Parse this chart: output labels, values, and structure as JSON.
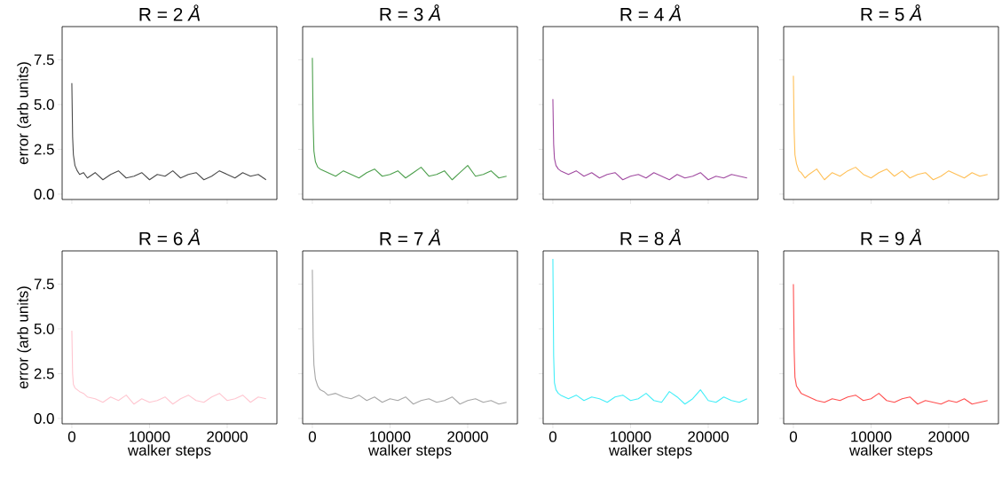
{
  "chart_data": [
    {
      "type": "line",
      "title": "R = 2 *Å*",
      "ylabel": "error (arb units)",
      "tick_labels": "y",
      "xlim": [
        -1250,
        26400
      ],
      "ylim": [
        -0.3,
        9.35
      ],
      "xticks": [
        0,
        10000,
        20000
      ],
      "yticks": [
        {
          "value": 0,
          "label": "0.0"
        },
        {
          "value": 2.5,
          "label": "2.5"
        },
        {
          "value": 5,
          "label": "5.0"
        },
        {
          "value": 7.5,
          "label": "7.5"
        }
      ],
      "x": [
        0,
        100,
        200,
        400,
        700,
        1000,
        1500,
        2000,
        3000,
        4000,
        5000,
        6000,
        7000,
        8000,
        9000,
        10000,
        11000,
        12000,
        13000,
        14000,
        15000,
        16000,
        17000,
        18000,
        19000,
        20000,
        21000,
        22000,
        23000,
        24000,
        25000
      ],
      "series": [
        {
          "color": "#4a4a4a",
          "values": [
            6.2,
            3.2,
            2.2,
            1.6,
            1.3,
            1.1,
            1.2,
            0.9,
            1.2,
            0.8,
            1.1,
            1.3,
            0.9,
            1.0,
            1.2,
            0.8,
            1.1,
            1.0,
            1.3,
            0.9,
            1.1,
            1.2,
            0.8,
            1.0,
            1.3,
            1.1,
            0.9,
            1.2,
            1.0,
            1.1,
            0.8
          ]
        }
      ]
    },
    {
      "type": "line",
      "title": "R = 3 *Å*",
      "tick_labels": false,
      "xlim": [
        -1250,
        26400
      ],
      "ylim": [
        -0.3,
        9.35
      ],
      "xticks": [
        0,
        10000,
        20000
      ],
      "yticks": [
        {
          "value": 0,
          "label": null
        },
        {
          "value": 2.5,
          "label": null
        },
        {
          "value": 5,
          "label": null
        },
        {
          "value": 7.5,
          "label": null
        }
      ],
      "x": [
        0,
        100,
        200,
        400,
        700,
        1000,
        1500,
        2000,
        3000,
        4000,
        5000,
        6000,
        7000,
        8000,
        9000,
        10000,
        11000,
        12000,
        13000,
        14000,
        15000,
        16000,
        17000,
        18000,
        19000,
        20000,
        21000,
        22000,
        23000,
        24000,
        25000
      ],
      "series": [
        {
          "color": "#4c9f4c",
          "values": [
            7.6,
            4.0,
            2.4,
            1.8,
            1.5,
            1.4,
            1.3,
            1.2,
            1.0,
            1.3,
            1.1,
            0.9,
            1.2,
            1.4,
            1.0,
            1.1,
            1.3,
            0.9,
            1.2,
            1.5,
            1.0,
            1.1,
            1.3,
            0.8,
            1.2,
            1.6,
            1.0,
            1.1,
            1.3,
            0.9,
            1.0
          ]
        }
      ]
    },
    {
      "type": "line",
      "title": "R = 4 *Å*",
      "tick_labels": false,
      "xlim": [
        -1250,
        26400
      ],
      "ylim": [
        -0.3,
        9.35
      ],
      "xticks": [
        0,
        10000,
        20000
      ],
      "yticks": [
        {
          "value": 0,
          "label": null
        },
        {
          "value": 2.5,
          "label": null
        },
        {
          "value": 5,
          "label": null
        },
        {
          "value": 7.5,
          "label": null
        }
      ],
      "x": [
        0,
        100,
        200,
        400,
        700,
        1000,
        1500,
        2000,
        3000,
        4000,
        5000,
        6000,
        7000,
        8000,
        9000,
        10000,
        11000,
        12000,
        13000,
        14000,
        15000,
        16000,
        17000,
        18000,
        19000,
        20000,
        21000,
        22000,
        23000,
        24000,
        25000
      ],
      "series": [
        {
          "color": "#a04aa0",
          "values": [
            5.3,
            2.8,
            2.0,
            1.6,
            1.4,
            1.3,
            1.2,
            1.1,
            1.3,
            1.0,
            1.2,
            0.9,
            1.1,
            1.2,
            0.8,
            1.0,
            1.1,
            0.9,
            1.2,
            1.0,
            0.8,
            1.1,
            0.9,
            1.0,
            1.2,
            0.8,
            1.0,
            0.9,
            1.1,
            1.0,
            0.9
          ]
        }
      ]
    },
    {
      "type": "line",
      "title": "R = 5 *Å*",
      "tick_labels": false,
      "xlim": [
        -1250,
        26400
      ],
      "ylim": [
        -0.3,
        9.35
      ],
      "xticks": [
        0,
        10000,
        20000
      ],
      "yticks": [
        {
          "value": 0,
          "label": null
        },
        {
          "value": 2.5,
          "label": null
        },
        {
          "value": 5,
          "label": null
        },
        {
          "value": 7.5,
          "label": null
        }
      ],
      "x": [
        0,
        100,
        200,
        400,
        700,
        1000,
        1500,
        2000,
        3000,
        4000,
        5000,
        6000,
        7000,
        8000,
        9000,
        10000,
        11000,
        12000,
        13000,
        14000,
        15000,
        16000,
        17000,
        18000,
        19000,
        20000,
        21000,
        22000,
        23000,
        24000,
        25000
      ],
      "series": [
        {
          "color": "#ffbf55",
          "values": [
            6.6,
            3.5,
            2.2,
            1.7,
            1.3,
            1.2,
            0.9,
            1.1,
            1.4,
            0.8,
            1.2,
            1.0,
            1.3,
            1.5,
            1.1,
            0.9,
            1.2,
            1.4,
            1.0,
            1.3,
            0.9,
            1.1,
            1.2,
            0.8,
            1.0,
            1.3,
            1.1,
            0.9,
            1.2,
            1.0,
            1.1
          ]
        }
      ]
    },
    {
      "type": "line",
      "title": "R = 6 *Å*",
      "xlabel": "walker steps",
      "ylabel": "error (arb units)",
      "xlim": [
        -1250,
        26400
      ],
      "ylim": [
        -0.3,
        9.35
      ],
      "xticks": [
        0,
        10000,
        20000
      ],
      "yticks": [
        {
          "value": 0,
          "label": "0.0"
        },
        {
          "value": 2.5,
          "label": "2.5"
        },
        {
          "value": 5,
          "label": "5.0"
        },
        {
          "value": 7.5,
          "label": "7.5"
        }
      ],
      "x": [
        0,
        100,
        200,
        400,
        700,
        1000,
        1500,
        2000,
        3000,
        4000,
        5000,
        6000,
        7000,
        8000,
        9000,
        10000,
        11000,
        12000,
        13000,
        14000,
        15000,
        16000,
        17000,
        18000,
        19000,
        20000,
        21000,
        22000,
        23000,
        24000,
        25000
      ],
      "series": [
        {
          "color": "#ffc6d0",
          "values": [
            4.9,
            2.5,
            1.9,
            1.7,
            1.6,
            1.5,
            1.4,
            1.2,
            1.1,
            0.9,
            1.2,
            1.0,
            1.3,
            0.8,
            1.1,
            0.9,
            1.0,
            1.2,
            0.8,
            1.1,
            1.3,
            1.0,
            0.9,
            1.2,
            1.4,
            1.0,
            1.1,
            1.3,
            0.9,
            1.2,
            1.1
          ]
        }
      ]
    },
    {
      "type": "line",
      "title": "R = 7 *Å*",
      "xlabel": "walker steps",
      "tick_labels": "x",
      "xlim": [
        -1250,
        26400
      ],
      "ylim": [
        -0.3,
        9.35
      ],
      "xticks": [
        0,
        10000,
        20000
      ],
      "yticks": [
        {
          "value": 0,
          "label": null
        },
        {
          "value": 2.5,
          "label": null
        },
        {
          "value": 5,
          "label": null
        },
        {
          "value": 7.5,
          "label": null
        }
      ],
      "x": [
        0,
        100,
        200,
        400,
        700,
        1000,
        1500,
        2000,
        3000,
        4000,
        5000,
        6000,
        7000,
        8000,
        9000,
        10000,
        11000,
        12000,
        13000,
        14000,
        15000,
        16000,
        17000,
        18000,
        19000,
        20000,
        21000,
        22000,
        23000,
        24000,
        25000
      ],
      "series": [
        {
          "color": "#a6a6a6",
          "values": [
            8.3,
            4.5,
            3.0,
            2.2,
            1.8,
            1.6,
            1.5,
            1.3,
            1.4,
            1.2,
            1.1,
            1.3,
            1.0,
            1.2,
            0.9,
            1.1,
            1.0,
            1.2,
            0.8,
            1.0,
            1.1,
            0.9,
            1.0,
            1.2,
            0.8,
            1.0,
            1.1,
            0.9,
            1.0,
            0.8,
            0.9
          ]
        }
      ]
    },
    {
      "type": "line",
      "title": "R = 8 *Å*",
      "xlabel": "walker steps",
      "tick_labels": "x",
      "xlim": [
        -1250,
        26400
      ],
      "ylim": [
        -0.3,
        9.35
      ],
      "xticks": [
        0,
        10000,
        20000
      ],
      "yticks": [
        {
          "value": 0,
          "label": null
        },
        {
          "value": 2.5,
          "label": null
        },
        {
          "value": 5,
          "label": null
        },
        {
          "value": 7.5,
          "label": null
        }
      ],
      "x": [
        0,
        100,
        200,
        400,
        700,
        1000,
        1500,
        2000,
        3000,
        4000,
        5000,
        6000,
        7000,
        8000,
        9000,
        10000,
        11000,
        12000,
        13000,
        14000,
        15000,
        16000,
        17000,
        18000,
        19000,
        20000,
        21000,
        22000,
        23000,
        24000,
        25000
      ],
      "series": [
        {
          "color": "#44eef8",
          "values": [
            8.9,
            3.5,
            2.0,
            1.6,
            1.4,
            1.3,
            1.2,
            1.1,
            1.3,
            1.0,
            1.2,
            1.1,
            0.9,
            1.2,
            1.3,
            1.0,
            1.1,
            1.4,
            1.0,
            0.9,
            1.5,
            1.2,
            0.8,
            1.1,
            1.6,
            1.0,
            0.9,
            1.2,
            1.0,
            0.9,
            1.1
          ]
        }
      ]
    },
    {
      "type": "line",
      "title": "R = 9 *Å*",
      "xlabel": "walker steps",
      "tick_labels": "x",
      "xlim": [
        -1250,
        26400
      ],
      "ylim": [
        -0.3,
        9.35
      ],
      "xticks": [
        0,
        10000,
        20000
      ],
      "yticks": [
        {
          "value": 0,
          "label": null
        },
        {
          "value": 2.5,
          "label": null
        },
        {
          "value": 5,
          "label": null
        },
        {
          "value": 7.5,
          "label": null
        }
      ],
      "x": [
        0,
        100,
        200,
        400,
        700,
        1000,
        1500,
        2000,
        3000,
        4000,
        5000,
        6000,
        7000,
        8000,
        9000,
        10000,
        11000,
        12000,
        13000,
        14000,
        15000,
        16000,
        17000,
        18000,
        19000,
        20000,
        21000,
        22000,
        23000,
        24000,
        25000
      ],
      "series": [
        {
          "color": "#ff4f4f",
          "values": [
            7.5,
            3.8,
            2.3,
            1.8,
            1.6,
            1.4,
            1.3,
            1.2,
            1.0,
            0.9,
            1.1,
            1.0,
            1.2,
            1.3,
            1.0,
            1.1,
            1.4,
            1.0,
            0.9,
            1.1,
            1.2,
            0.8,
            1.0,
            0.9,
            0.8,
            1.0,
            0.9,
            1.1,
            0.8,
            0.9,
            1.0
          ]
        }
      ]
    }
  ]
}
